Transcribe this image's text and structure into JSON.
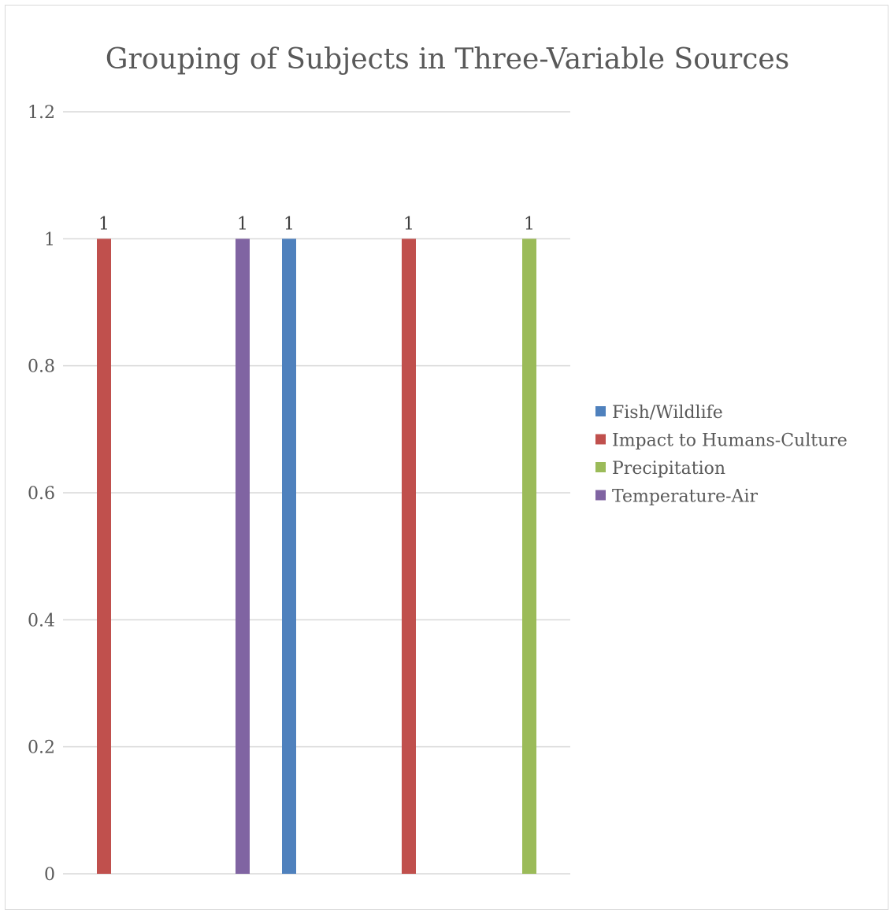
{
  "chart_data": {
    "type": "bar",
    "title": "Grouping of Subjects in Three-Variable Sources",
    "xlabel": "",
    "ylabel": "",
    "ylim": [
      0,
      1.2
    ],
    "yticks": [
      "0",
      "0.2",
      "0.4",
      "0.6",
      "0.8",
      "1",
      "1.2"
    ],
    "ytick_values": [
      0,
      0.2,
      0.4,
      0.6,
      0.8,
      1,
      1.2
    ],
    "grid": true,
    "legend_position": "right",
    "series": [
      {
        "name": "Fish/Wildlife",
        "color": "#4f81bd"
      },
      {
        "name": "Impact to Humans-Culture",
        "color": "#c0504d"
      },
      {
        "name": "Precipitation",
        "color": "#9bbb59"
      },
      {
        "name": "Temperature-Air",
        "color": "#8064a2"
      }
    ],
    "bars": [
      {
        "series": "Impact to Humans-Culture",
        "value": 1,
        "label": "1"
      },
      {
        "series": "Temperature-Air",
        "value": 1,
        "label": "1"
      },
      {
        "series": "Fish/Wildlife",
        "value": 1,
        "label": "1"
      },
      {
        "series": "Impact to Humans-Culture",
        "value": 1,
        "label": "1"
      },
      {
        "series": "Precipitation",
        "value": 1,
        "label": "1"
      }
    ]
  }
}
